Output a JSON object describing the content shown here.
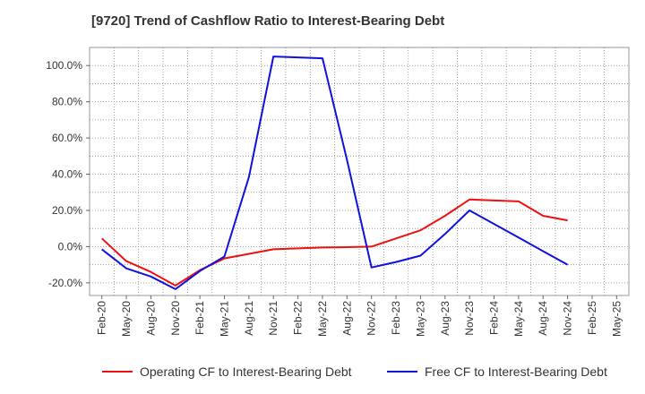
{
  "chart_data": {
    "type": "line",
    "title": "[9720]  Trend of Cashflow Ratio to Interest-Bearing Debt",
    "xlabel": "",
    "ylabel": "",
    "x": [
      "Feb-20",
      "May-20",
      "Aug-20",
      "Nov-20",
      "Feb-21",
      "May-21",
      "Aug-21",
      "Nov-21",
      "Feb-22",
      "May-22",
      "Aug-22",
      "Nov-22",
      "Feb-23",
      "May-23",
      "Aug-23",
      "Nov-23",
      "Feb-24",
      "May-24",
      "Aug-24",
      "Nov-24",
      "Feb-25",
      "May-25"
    ],
    "ylim": [
      -27,
      110
    ],
    "yticks": [
      -20,
      0,
      20,
      40,
      60,
      80,
      100
    ],
    "ytick_labels": [
      "-20.0%",
      "0.0%",
      "20.0%",
      "40.0%",
      "60.0%",
      "80.0%",
      "100.0%"
    ],
    "grid": true,
    "legend_position": "bottom",
    "series": [
      {
        "name": "Operating CF to Interest-Bearing Debt",
        "color": "#ee1111",
        "values": [
          4.5,
          -8.0,
          -14.0,
          -21.5,
          -13.0,
          -6.5,
          -4.0,
          -1.5,
          -1.0,
          -0.5,
          -0.3,
          0.0,
          4.5,
          9.0,
          17.0,
          26.0,
          25.5,
          25.0,
          17.0,
          14.5,
          null,
          null
        ]
      },
      {
        "name": "Free CF to Interest-Bearing Debt",
        "color": "#1111dd",
        "values": [
          -1.5,
          -12.0,
          -16.5,
          -23.5,
          -13.5,
          -5.5,
          38.5,
          105.0,
          104.5,
          104.0,
          48.0,
          -11.5,
          -8.5,
          -5.0,
          7.0,
          20.0,
          12.5,
          5.0,
          -2.5,
          -10.0,
          null,
          null
        ]
      }
    ]
  }
}
